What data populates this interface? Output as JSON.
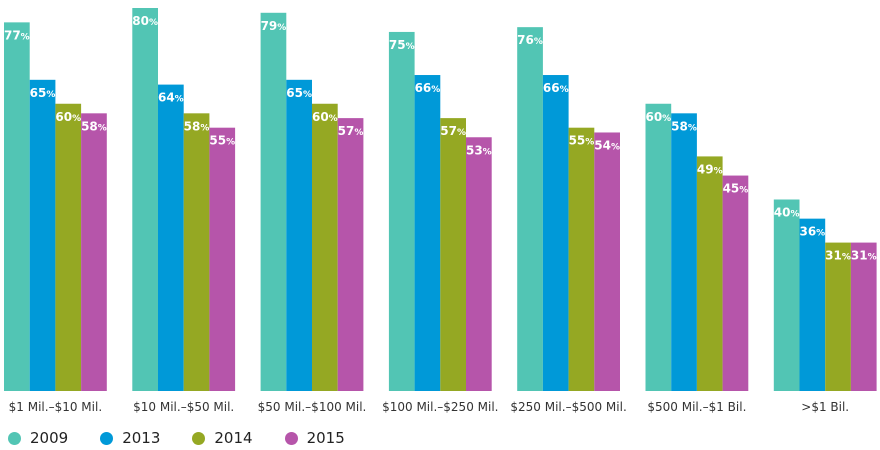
{
  "chart_data": {
    "type": "bar",
    "title": "",
    "xlabel": "",
    "ylabel": "",
    "ylim": [
      0,
      80
    ],
    "grid": false,
    "legend_position": "bottom-left",
    "value_suffix": "%",
    "categories": [
      "$1 Mil.–$10 Mil.",
      "$10 Mil.–$50 Mil.",
      "$50 Mil.–$100 Mil.",
      "$100 Mil.–$250 Mil.",
      "$250 Mil.–$500 Mil.",
      "$500 Mil.–$1 Bil.",
      ">$1 Bil."
    ],
    "series": [
      {
        "name": "2009",
        "color": "#52c5b4",
        "values": [
          77,
          80,
          79,
          75,
          76,
          60,
          40
        ]
      },
      {
        "name": "2013",
        "color": "#0099d8",
        "values": [
          65,
          64,
          65,
          66,
          66,
          58,
          36
        ]
      },
      {
        "name": "2014",
        "color": "#95a823",
        "values": [
          60,
          58,
          60,
          57,
          55,
          49,
          31
        ]
      },
      {
        "name": "2015",
        "color": "#b655aa",
        "values": [
          58,
          55,
          57,
          53,
          54,
          45,
          31
        ]
      }
    ]
  }
}
